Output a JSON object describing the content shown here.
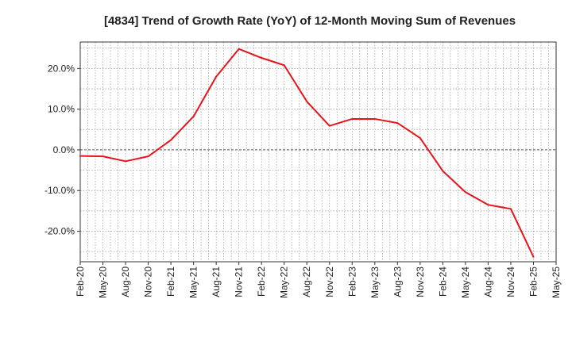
{
  "chart_data": {
    "type": "line",
    "title": "[4834]  Trend of Growth Rate (YoY) of 12-Month Moving Sum of Revenues",
    "xlabel": "",
    "ylabel": "",
    "x_tick_labels": [
      "Feb-20",
      "May-20",
      "Aug-20",
      "Nov-20",
      "Feb-21",
      "May-21",
      "Aug-21",
      "Nov-21",
      "Feb-22",
      "May-22",
      "Aug-22",
      "Nov-22",
      "Feb-23",
      "May-23",
      "Aug-23",
      "Nov-23",
      "Feb-24",
      "May-24",
      "Aug-24",
      "Nov-24",
      "Feb-25",
      "May-25"
    ],
    "y_ticks": [
      20,
      10,
      0,
      -10,
      -20
    ],
    "y_tick_labels": [
      "20.0%",
      "10.0%",
      "0.0%",
      "-10.0%",
      "-20.0%"
    ],
    "ylim": [
      -27.5,
      26.5
    ],
    "grid": true,
    "colors": {
      "series": "#e8141c",
      "grid": "#999999",
      "zero_line": "#555555",
      "axis": "#333333"
    },
    "series": [
      {
        "x": [
          "Feb-20",
          "May-20",
          "Aug-20",
          "Nov-20",
          "Feb-21",
          "May-21",
          "Aug-21",
          "Nov-21",
          "Feb-22",
          "May-22",
          "Aug-22",
          "Nov-22",
          "Feb-23",
          "May-23",
          "Aug-23",
          "Nov-23",
          "Feb-24",
          "May-24",
          "Aug-24",
          "Nov-24",
          "Feb-25"
        ],
        "values": [
          -1.5,
          -1.6,
          -2.8,
          -1.6,
          2.4,
          8.2,
          18.0,
          24.8,
          22.6,
          20.8,
          11.9,
          5.9,
          7.6,
          7.6,
          6.6,
          2.9,
          -5.2,
          -10.4,
          -13.5,
          -14.5,
          -26.3
        ]
      }
    ]
  }
}
